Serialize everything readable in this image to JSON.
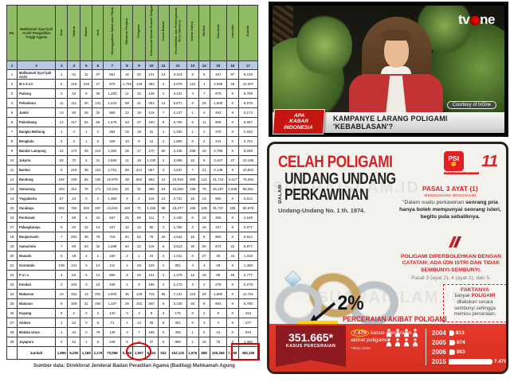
{
  "table": {
    "col_numbers": [
      "1",
      "2",
      "3",
      "4",
      "5",
      "6",
      "7",
      "8",
      "9",
      "10",
      "11",
      "12",
      "13",
      "14",
      "15",
      "16",
      "17"
    ],
    "headers": [
      "No.",
      "Mahkamah Syar'iyah Aceh/ Pengadilan Tinggi Agama",
      "Zina",
      "Mabuk",
      "Madat",
      "Judi",
      "Meninggalkan Salah satu Pihak",
      "Dihukum Penjara",
      "Poligami",
      "Kekerasan Dalam Rumah Tangga",
      "Cacat Badan",
      "Perselisihan dan Pertengkaran Terus Menerus",
      "Kawin Paksa",
      "Murtad",
      "Ekonomi",
      "Lain-lain",
      "Jumlah"
    ],
    "rows": [
      {
        "no": "1",
        "name": "Mahkamah Syar'iyah Aceh",
        "v": [
          "1",
          "31",
          "11",
          "37",
          "661",
          "16",
          "20",
          "131",
          "13",
          "3,113",
          "5",
          "5",
          "167",
          "97",
          "5,129"
        ]
      },
      {
        "no": "2",
        "name": "M e d a n",
        "v": [
          "5",
          "418",
          "229",
          "27",
          "978",
          "1,765",
          "149",
          "392",
          "2",
          "2,879",
          "122",
          "1",
          "2,068",
          "25",
          "10,307"
        ]
      },
      {
        "no": "3",
        "name": "Padang",
        "v": [
          "2",
          "13",
          "8",
          "45",
          "1,283",
          "11",
          "10",
          "148",
          "2",
          "4,421",
          "4",
          "7",
          "875",
          "0",
          "6,798"
        ]
      },
      {
        "no": "4",
        "name": "Pekanbaru",
        "v": [
          "11",
          "111",
          "20",
          "131",
          "1,524",
          "58",
          "31",
          "362",
          "13",
          "5,671",
          "0",
          "25",
          "1,608",
          "0",
          "9,578"
        ]
      },
      {
        "no": "5",
        "name": "Jambi",
        "v": [
          "13",
          "40",
          "26",
          "32",
          "865",
          "13",
          "18",
          "115",
          "7",
          "2,127",
          "1",
          "4",
          "482",
          "0",
          "3,174"
        ]
      },
      {
        "no": "6",
        "name": "Palembang",
        "v": [
          "14",
          "117",
          "52",
          "66",
          "1,676",
          "53",
          "27",
          "150",
          "8",
          "5,700",
          "6",
          "11",
          "808",
          "0",
          "8,067"
        ]
      },
      {
        "no": "7",
        "name": "Bangka Belitung",
        "v": [
          "1",
          "3",
          "1",
          "2",
          "294",
          "15",
          "18",
          "31",
          "1",
          "1,400",
          "1",
          "2",
          "379",
          "0",
          "2,040"
        ]
      },
      {
        "no": "8",
        "name": "Bengkulu",
        "v": [
          "2",
          "3",
          "1",
          "6",
          "349",
          "10",
          "9",
          "11",
          "2",
          "1,860",
          "0",
          "2",
          "242",
          "0",
          "2,704"
        ]
      },
      {
        "no": "9",
        "name": "Bandar Lampung",
        "v": [
          "44",
          "174",
          "29",
          "213",
          "1,350",
          "25",
          "17",
          "170",
          "50",
          "3,135",
          "258",
          "18",
          "2,755",
          "0",
          "8,298"
        ]
      },
      {
        "no": "10",
        "name": "Jakarta",
        "v": [
          "53",
          "70",
          "6",
          "31",
          "2,865",
          "11",
          "18",
          "1,430",
          "4",
          "3,088",
          "15",
          "9",
          "3,447",
          "47",
          "10,198"
        ]
      },
      {
        "no": "11",
        "name": "Banten",
        "v": [
          "5",
          "218",
          "39",
          "151",
          "2,751",
          "69",
          "214",
          "657",
          "3",
          "4,637",
          "7",
          "21",
          "2,138",
          "0",
          "10,802"
        ]
      },
      {
        "no": "12",
        "name": "Bandung",
        "v": [
          "192",
          "229",
          "84",
          "150",
          "10,879",
          "38",
          "552",
          "682",
          "12",
          "23,918",
          "380",
          "121",
          "31,716",
          "4,117",
          "75,294"
        ]
      },
      {
        "no": "13",
        "name": "Semarang",
        "v": [
          "403",
          "312",
          "70",
          "171",
          "20,216",
          "33",
          "41",
          "385",
          "63",
          "23,168",
          "158",
          "78",
          "26,197",
          "1,838",
          "69,361"
        ]
      },
      {
        "no": "14",
        "name": "Yogyakarta",
        "v": [
          "57",
          "13",
          "0",
          "2",
          "1,384",
          "4",
          "2",
          "116",
          "12",
          "2,731",
          "15",
          "13",
          "665",
          "0",
          "5,014"
        ]
      },
      {
        "no": "15",
        "name": "Surabaya",
        "v": [
          "502",
          "760",
          "203",
          "287",
          "14,819",
          "440",
          "71",
          "1,465",
          "98",
          "33,377",
          "169",
          "135",
          "31,737",
          "335",
          "84,978"
        ]
      },
      {
        "no": "16",
        "name": "Pontianak",
        "v": [
          "7",
          "58",
          "6",
          "42",
          "847",
          "25",
          "50",
          "111",
          "7",
          "2,430",
          "0",
          "18",
          "358",
          "0",
          "4,169"
        ]
      },
      {
        "no": "17",
        "name": "Palangkaraya",
        "v": [
          "5",
          "34",
          "12",
          "14",
          "107",
          "12",
          "12",
          "60",
          "3",
          "1,750",
          "2",
          "18",
          "157",
          "0",
          "2,077"
        ]
      },
      {
        "no": "18",
        "name": "Banjarmasin",
        "v": [
          "7",
          "292",
          "38",
          "79",
          "718",
          "84",
          "82",
          "79",
          "18",
          "4,542",
          "15",
          "9",
          "860",
          "0",
          "6,812"
        ]
      },
      {
        "no": "19",
        "name": "Samarinda",
        "v": [
          "7",
          "60",
          "63",
          "32",
          "1,698",
          "63",
          "42",
          "115",
          "6",
          "3,813",
          "20",
          "28",
          "874",
          "41",
          "6,877"
        ]
      },
      {
        "no": "20",
        "name": "Manado",
        "v": [
          "5",
          "18",
          "2",
          "1",
          "160",
          "2",
          "1",
          "34",
          "2",
          "1,011",
          "0",
          "27",
          "38",
          "44",
          "1,318"
        ]
      },
      {
        "no": "21",
        "name": "Gorontalo",
        "v": [
          "108",
          "141",
          "0",
          "12",
          "211",
          "4",
          "29",
          "129",
          "2",
          "801",
          "4",
          "4",
          "48",
          "0",
          "1,458"
        ]
      },
      {
        "no": "22",
        "name": "P a l u",
        "v": [
          "4",
          "63",
          "5",
          "14",
          "966",
          "8",
          "20",
          "131",
          "2",
          "1,479",
          "12",
          "18",
          "88",
          "60",
          "2,777"
        ]
      },
      {
        "no": "23",
        "name": "Kendari",
        "v": [
          "2",
          "105",
          "3",
          "23",
          "449",
          "4",
          "9",
          "185",
          "4",
          "1,173",
          "3",
          "2",
          "278",
          "0",
          "2,278"
        ]
      },
      {
        "no": "24",
        "name": "Makassar",
        "v": [
          "16",
          "452",
          "13",
          "202",
          "2,803",
          "36",
          "129",
          "715",
          "86",
          "7,131",
          "116",
          "29",
          "1,680",
          "0",
          "12,761"
        ]
      },
      {
        "no": "25",
        "name": "Mataram",
        "v": [
          "5",
          "329",
          "21",
          "292",
          "1,337",
          "29",
          "102",
          "500",
          "5",
          "3,109",
          "46",
          "9",
          "893",
          "0",
          "6,790"
        ]
      },
      {
        "no": "26",
        "name": "Kupang",
        "v": [
          "8",
          "2",
          "0",
          "2",
          "140",
          "0",
          "3",
          "9",
          "3",
          "175",
          "0",
          "2",
          "8",
          "0",
          "344"
        ]
      },
      {
        "no": "27",
        "name": "Ambon",
        "v": [
          "1",
          "22",
          "0",
          "6",
          "71",
          "1",
          "14",
          "39",
          "8",
          "301",
          "0",
          "3",
          "4",
          "0",
          "477"
        ]
      },
      {
        "no": "28",
        "name": "Maluku Utara",
        "v": [
          "1",
          "34",
          "0",
          "79",
          "138",
          "0",
          "7",
          "185",
          "0",
          "405",
          "1",
          "0",
          "24",
          "0",
          "934"
        ]
      },
      {
        "no": "29",
        "name": "Jayapura",
        "v": [
          "0",
          "12",
          "1",
          "6",
          "248",
          "5",
          "8",
          "37",
          "5",
          "868",
          "1",
          "18",
          "75",
          "0",
          "1,482"
        ]
      }
    ],
    "total_row": {
      "no": "",
      "name": "Jumlah",
      "v": [
        "1,896",
        "9,290",
        "1,189",
        "2,179",
        "70,958",
        "5,858",
        "1,697",
        "8,453",
        "932",
        "163,125",
        "1,976",
        "888",
        "105,266",
        "7,789",
        "365,169"
      ]
    },
    "highlights": {
      "circled_value": "1,697",
      "boxed_value": "365,169"
    },
    "source": "Sumber data: Direktorat Jenderal Badan Peradilan Agama (Badilag) Mahkamah Agung"
  },
  "tv": {
    "channel_tv": "tv",
    "channel_ne": "ne",
    "show_badge_line1": "APA",
    "show_badge_line2": "KABAR",
    "show_badge_line3": "INDONESIA",
    "caption": "KAMPANYE LARANG POLIGAMI 'KEBABLASAN'?",
    "courtesy": "Courtesy of tvOne"
  },
  "infographic": {
    "watermark": "SUARAISLAM.ID",
    "title_line1": "CELAH POLIGAMI",
    "title_vertical": "DALAM",
    "title_line2": "UNDANG UNDANG",
    "title_line3": "PERKAWINAN",
    "subtitle": "Undang-Undang No. 1 th. 1974.",
    "party_abbr": "PSI",
    "party_fist": "✊",
    "party_name": "PARTAI SOLIDARITAS INDONESIA",
    "party_number": "11",
    "pasal1_heading": "PASAL 3 AYAT (1)",
    "pasal1_subheading": "MENDUKUNG MONOGAMI",
    "pasal1_body_a": "\"Dalam suatu perkawinan ",
    "pasal1_body_b": "seorang pria hanya boleh mempunyai seorang isteri, begitu pula sebaliknya.",
    "pasal2_heading": "POLIGAMI DIPERBOLEHKAN DENGAN CATATAN: ADA IZIN ISTRI DAN TIDAK SEMBUNYI-SEMBUNYI.",
    "pasal2_body": "Pasal 3 (ayat 2), 4 (ayat 1), dan 5.",
    "fakta_heading": "FAKTANYA",
    "fakta_body_a": "banyak ",
    "fakta_body_b": "POLIGAMI",
    "fakta_body_c": " dilakukan secara sembunyi sehingga memicu perceraian.",
    "percent": "2%",
    "percent_caption": "PERCERAIAN AKIBAT POLIGAMI",
    "ribbon_number": "351.665*",
    "ribbon_label": "KASUS PERCERAIAN",
    "poligami_number": "7.476",
    "poligami_text_a": " kasus perceraian",
    "poligami_text_b": "akibat poligami.",
    "poligami_note": "*Tahun 2015",
    "chart_data": {
      "type": "bar",
      "categories": [
        "2004",
        "2005",
        "2006",
        "2015"
      ],
      "values": [
        813,
        874,
        983,
        7476
      ],
      "value_labels": [
        "813",
        "874",
        "983",
        "7.476"
      ],
      "title": "Perceraian akibat poligami per tahun",
      "bar_color": "#ffffff",
      "background": "#e6392b"
    },
    "colors": {
      "accent_red": "#d62027",
      "band_red": "#e6392b",
      "ribbon_dark": "#8c1a20",
      "highlight_yellow": "#ffd400"
    }
  }
}
